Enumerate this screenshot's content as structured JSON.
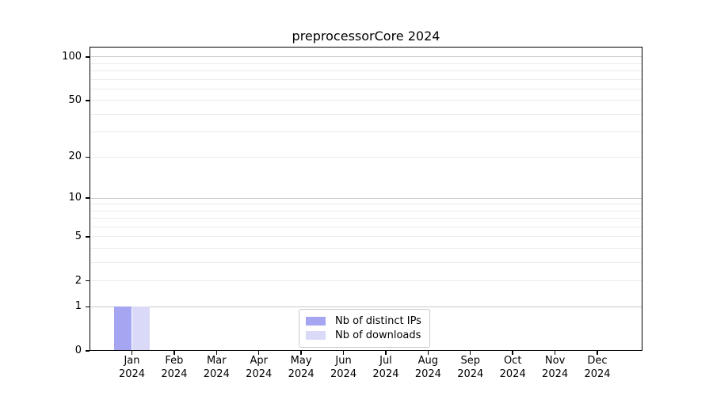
{
  "chart_data": {
    "type": "bar",
    "title": "preprocessorCore 2024",
    "months": [
      "Jan",
      "Feb",
      "Mar",
      "Apr",
      "May",
      "Jun",
      "Jul",
      "Aug",
      "Sep",
      "Oct",
      "Nov",
      "Dec"
    ],
    "year": "2024",
    "series": [
      {
        "name": "Nb of distinct IPs",
        "color": "#a5a5f2",
        "values": [
          1,
          0,
          0,
          0,
          0,
          0,
          0,
          0,
          0,
          0,
          0,
          0
        ]
      },
      {
        "name": "Nb of downloads",
        "color": "#dadaf8",
        "values": [
          1,
          0,
          0,
          0,
          0,
          0,
          0,
          0,
          0,
          0,
          0,
          0
        ]
      }
    ],
    "y_axis": {
      "scale": "log1p",
      "tick_values": [
        0,
        1,
        2,
        5,
        10,
        20,
        50,
        100
      ],
      "major_grid_values": [
        1,
        10,
        100
      ],
      "minor_grid_values": [
        2,
        3,
        4,
        5,
        6,
        7,
        8,
        9,
        20,
        30,
        40,
        50,
        60,
        70,
        80,
        90
      ],
      "y_max": 117.6
    },
    "legend_position": "lower center inside plot",
    "grid": "horizontal",
    "colors": {
      "grid_major": "#c9c9c9",
      "grid_minor": "#ececec",
      "axis": "#000000",
      "legend_border": "#c9c9c9",
      "text": "#000000"
    }
  }
}
